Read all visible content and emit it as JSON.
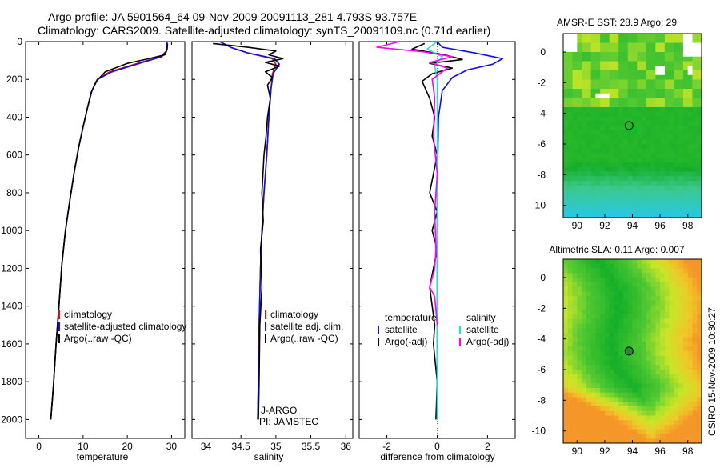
{
  "header": {
    "line1": "Argo profile: JA 5901564_64 09-Nov-2009 20091113_281 4.793S 93.757E",
    "line2": "Climatology: CARS2009. Satellite-adjusted climatology: synTS_20091109.nc (0.71d earlier)"
  },
  "side_stamp": "CSIRO 15-Nov-2009 10:30:27",
  "colors": {
    "red": "#e01010",
    "blue": "#1010e0",
    "black": "#000000",
    "magenta": "#ff00ff",
    "cyan": "#20e0e0"
  },
  "chart_data": [
    {
      "type": "line",
      "id": "temperature",
      "xlabel": "temperature",
      "ylabel": "",
      "xlim": [
        -3,
        33
      ],
      "ylim": [
        2100,
        0
      ],
      "xticks": [
        0,
        10,
        20,
        30
      ],
      "yticks": [
        0,
        200,
        400,
        600,
        800,
        1000,
        1200,
        1400,
        1600,
        1800,
        2000
      ],
      "legend": {
        "placement": "bottom-right",
        "entries": [
          {
            "label": "climatology",
            "color": "red"
          },
          {
            "label": "satellite-adjusted climatology",
            "color": "blue"
          },
          {
            "label": "Argo(..raw -QC)",
            "color": "black"
          }
        ]
      },
      "series": [
        {
          "name": "climatology",
          "color": "red",
          "x": [
            29.0,
            28.8,
            27.5,
            23.0,
            16.0,
            13.2,
            12.0,
            11.0,
            10.0,
            9.0,
            8.0,
            7.0,
            6.0,
            5.2,
            4.6,
            3.9,
            3.3,
            2.7
          ],
          "y": [
            0,
            50,
            80,
            110,
            160,
            200,
            260,
            350,
            450,
            560,
            690,
            840,
            1000,
            1180,
            1380,
            1600,
            1820,
            2000
          ]
        },
        {
          "name": "satellite-adjusted climatology",
          "color": "blue",
          "x": [
            29.0,
            28.9,
            27.8,
            23.5,
            16.5,
            13.3,
            12.0,
            11.0,
            10.0,
            9.0,
            8.0,
            7.0,
            6.0,
            5.2,
            4.6,
            3.9,
            3.3,
            2.7
          ],
          "y": [
            0,
            50,
            80,
            110,
            160,
            200,
            260,
            350,
            450,
            560,
            690,
            840,
            1000,
            1180,
            1380,
            1600,
            1820,
            2000
          ]
        },
        {
          "name": "Argo(..raw -QC)",
          "color": "black",
          "x": [
            29.1,
            29.0,
            28.5,
            24.0,
            20.0,
            15.0,
            13.0,
            11.8,
            11.0,
            10.0,
            9.0,
            8.0,
            7.0,
            6.0,
            5.2,
            4.6,
            3.9,
            3.3,
            2.7
          ],
          "y": [
            10,
            40,
            70,
            95,
            115,
            160,
            210,
            270,
            350,
            450,
            560,
            690,
            840,
            1000,
            1180,
            1380,
            1600,
            1820,
            2000
          ]
        }
      ]
    },
    {
      "type": "line",
      "id": "salinity",
      "xlabel": "salinity",
      "xlim": [
        33.8,
        36.1
      ],
      "ylim": [
        2100,
        0
      ],
      "xticks": [
        34,
        34.5,
        35,
        35.5,
        36
      ],
      "legend": {
        "placement": "bottom-right",
        "entries": [
          {
            "label": "climatology",
            "color": "red"
          },
          {
            "label": "satellite adj. clim.",
            "color": "blue"
          },
          {
            "label": "Argo(..raw -QC)",
            "color": "black"
          }
        ]
      },
      "annotations": [
        "J-ARGO",
        "PI: JAMSTEC"
      ],
      "series": [
        {
          "name": "climatology",
          "color": "red",
          "x": [
            34.2,
            34.35,
            34.6,
            34.95,
            35.0,
            34.95,
            34.93,
            34.9,
            34.87,
            34.83,
            34.8,
            34.78,
            34.76,
            34.75,
            34.74
          ],
          "y": [
            0,
            30,
            60,
            90,
            120,
            170,
            250,
            400,
            600,
            800,
            1000,
            1200,
            1500,
            1800,
            2000
          ]
        },
        {
          "name": "satellite adj. clim.",
          "color": "blue",
          "x": [
            34.2,
            34.35,
            34.6,
            34.98,
            35.05,
            34.96,
            34.93,
            34.9,
            34.87,
            34.83,
            34.8,
            34.78,
            34.76,
            34.75,
            34.74
          ],
          "y": [
            0,
            30,
            60,
            90,
            120,
            170,
            250,
            400,
            600,
            800,
            1000,
            1200,
            1500,
            1800,
            2000
          ]
        },
        {
          "name": "Argo(..raw -QC)",
          "color": "black",
          "x": [
            34.1,
            34.6,
            35.0,
            34.9,
            35.1,
            34.85,
            35.05,
            34.85,
            34.95,
            34.88,
            34.92,
            34.88,
            34.86,
            34.83,
            34.8,
            34.82,
            34.78,
            34.8,
            34.77,
            34.76,
            34.75
          ],
          "y": [
            10,
            30,
            50,
            70,
            90,
            110,
            130,
            160,
            190,
            230,
            300,
            400,
            500,
            600,
            800,
            950,
            1100,
            1300,
            1500,
            1800,
            2000
          ]
        }
      ]
    },
    {
      "type": "line",
      "id": "difference",
      "xlabel": "difference from climatology",
      "xlim": [
        -3.1,
        3.1
      ],
      "ylim": [
        2100,
        0
      ],
      "xticks": [
        -2,
        0,
        2
      ],
      "legend": {
        "placement": "bottom",
        "entries": [
          {
            "label": "temperature",
            "color": "none"
          },
          {
            "label": "satellite",
            "color": "blue"
          },
          {
            "label": "Argo(-adj)",
            "color": "black"
          },
          {
            "label": "salinity",
            "color": "none"
          },
          {
            "label": "satellite",
            "color": "cyan"
          },
          {
            "label": "Argo(-adj)",
            "color": "magenta"
          }
        ]
      },
      "series": [
        {
          "name": "temperature satellite",
          "color": "blue",
          "x": [
            0.0,
            0.2,
            1.5,
            2.6,
            2.2,
            1.2,
            0.6,
            0.2,
            0.05,
            0.0,
            0.0
          ],
          "y": [
            0,
            30,
            60,
            90,
            120,
            150,
            190,
            260,
            400,
            800,
            2000
          ]
        },
        {
          "name": "temperature Argo(-adj)",
          "color": "black",
          "x": [
            -0.5,
            -1.0,
            0.3,
            1.0,
            -0.3,
            0.6,
            -0.2,
            -0.6,
            -0.3,
            -0.1,
            -0.2,
            0.0,
            -0.3,
            0.0,
            -0.2,
            0.0,
            -0.3,
            -0.1,
            -0.15,
            0.0,
            -0.05
          ],
          "y": [
            10,
            40,
            70,
            95,
            115,
            140,
            170,
            210,
            300,
            400,
            500,
            600,
            800,
            900,
            1000,
            1100,
            1300,
            1500,
            1600,
            1800,
            2000
          ]
        },
        {
          "name": "salinity satellite",
          "color": "cyan",
          "x": [
            0.0,
            -0.4,
            0.2,
            -0.1,
            0.0,
            0.0
          ],
          "y": [
            0,
            40,
            80,
            130,
            200,
            2000
          ]
        },
        {
          "name": "salinity Argo(-adj)",
          "color": "magenta",
          "x": [
            -1.5,
            -2.4,
            -0.5,
            0.6,
            -0.3,
            0.4,
            -0.2,
            -0.1,
            -0.15,
            0.0,
            -0.1,
            -0.05,
            -0.1,
            -0.2,
            -0.3,
            -0.1,
            0.0
          ],
          "y": [
            0,
            30,
            55,
            80,
            110,
            140,
            200,
            300,
            500,
            700,
            900,
            1100,
            1200,
            1250,
            1300,
            1350,
            1500
          ]
        }
      ]
    },
    {
      "type": "heatmap",
      "id": "sst-map",
      "title": "AMSR-E SST: 28.9 Argo: 29",
      "xlim": [
        89,
        99
      ],
      "ylim": [
        -10.8,
        1.2
      ],
      "xticks": [
        90,
        92,
        94,
        96,
        98
      ],
      "yticks": [
        0,
        -2,
        -4,
        -6,
        -8,
        -10
      ],
      "argo_location": {
        "lon": 93.757,
        "lat": -4.793
      }
    },
    {
      "type": "heatmap",
      "id": "sla-map",
      "title": "Altimetric SLA: 0.11 Argo: 0.007",
      "xlim": [
        89,
        99
      ],
      "ylim": [
        -10.8,
        1.2
      ],
      "xticks": [
        90,
        92,
        94,
        96,
        98
      ],
      "yticks": [
        0,
        -2,
        -4,
        -6,
        -8,
        -10
      ],
      "argo_location": {
        "lon": 93.757,
        "lat": -4.793
      }
    }
  ]
}
